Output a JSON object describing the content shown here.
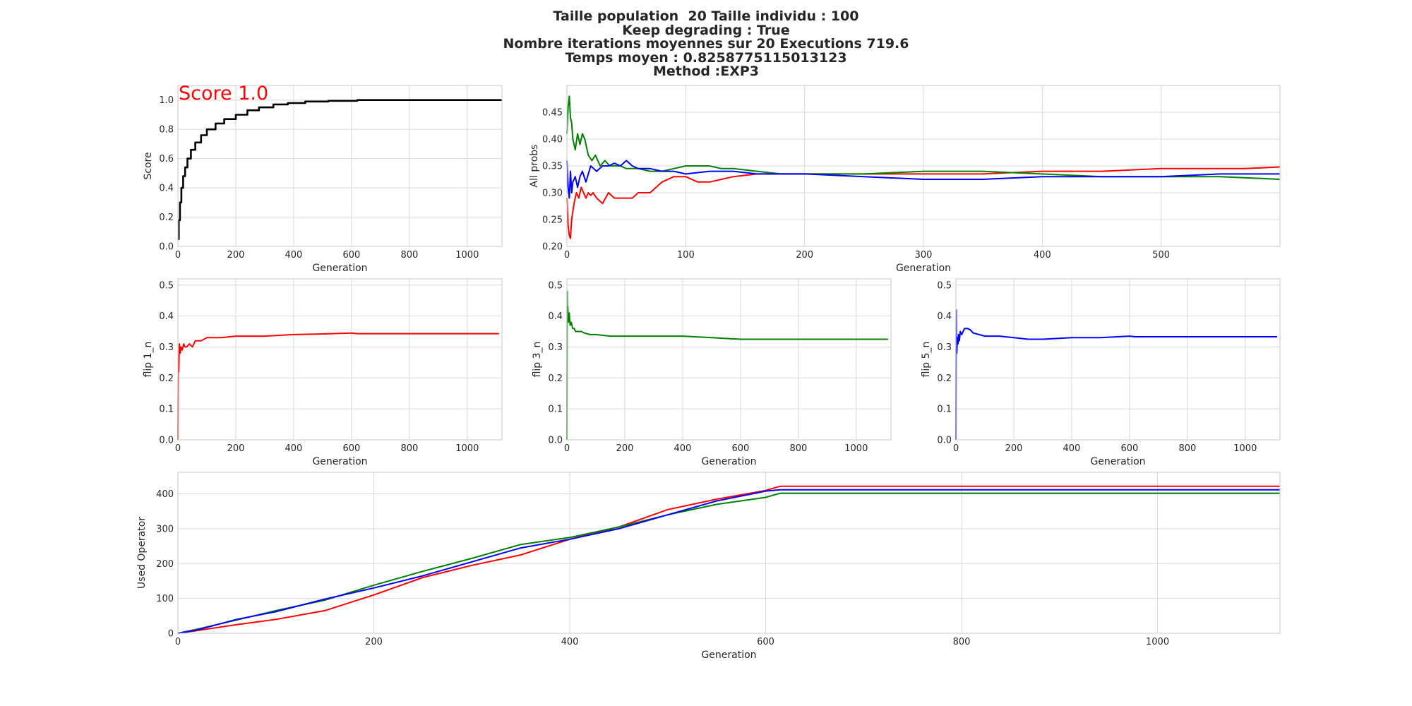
{
  "figure": {
    "title_lines": [
      "Taille population  20 Taille individu : 100",
      "Keep degrading : True",
      "Nombre iterations moyennes sur 20 Executions 719.6",
      "Temps moyen : 0.8258775115013123",
      "Method :EXP3"
    ]
  },
  "colors": {
    "flip1": "#ff0000",
    "flip3": "#008000",
    "flip5": "#0000ff",
    "score": "#000000"
  },
  "chart_data": [
    {
      "id": "score",
      "type": "line",
      "xlabel": "Generation",
      "ylabel": "Score",
      "xlim": [
        0,
        1120
      ],
      "ylim": [
        0,
        1.1
      ],
      "xticks": [
        0,
        200,
        400,
        600,
        800,
        1000
      ],
      "yticks": [
        0.0,
        0.2,
        0.4,
        0.6,
        0.8,
        1.0
      ],
      "annotation": "Score 1.0",
      "series": [
        {
          "color": "#000000",
          "step": true,
          "x": [
            0,
            3,
            7,
            12,
            18,
            25,
            33,
            45,
            60,
            80,
            100,
            130,
            160,
            200,
            240,
            280,
            330,
            380,
            440,
            520,
            620,
            1120
          ],
          "y": [
            0.05,
            0.18,
            0.3,
            0.4,
            0.48,
            0.54,
            0.6,
            0.66,
            0.71,
            0.76,
            0.8,
            0.84,
            0.87,
            0.9,
            0.93,
            0.95,
            0.97,
            0.98,
            0.99,
            0.995,
            1.0,
            1.0
          ]
        }
      ]
    },
    {
      "id": "allprobs",
      "type": "line",
      "xlabel": "Generation",
      "ylabel": "All probs",
      "xlim": [
        0,
        600
      ],
      "ylim": [
        0.2,
        0.5
      ],
      "xticks": [
        0,
        100,
        200,
        300,
        400,
        500
      ],
      "yticks": [
        0.2,
        0.25,
        0.3,
        0.35,
        0.4,
        0.45
      ],
      "series": [
        {
          "color": "#ff0000",
          "x": [
            0,
            1,
            2,
            3,
            4,
            6,
            8,
            10,
            12,
            14,
            16,
            18,
            20,
            22,
            25,
            30,
            35,
            40,
            45,
            50,
            55,
            60,
            70,
            80,
            90,
            100,
            110,
            120,
            140,
            160,
            180,
            200,
            250,
            300,
            350,
            400,
            450,
            500,
            550,
            570,
            600
          ],
          "y": [
            0.29,
            0.24,
            0.22,
            0.215,
            0.25,
            0.28,
            0.3,
            0.29,
            0.31,
            0.3,
            0.29,
            0.3,
            0.295,
            0.3,
            0.29,
            0.28,
            0.3,
            0.29,
            0.29,
            0.29,
            0.29,
            0.3,
            0.3,
            0.32,
            0.33,
            0.33,
            0.32,
            0.32,
            0.33,
            0.335,
            0.335,
            0.335,
            0.335,
            0.335,
            0.335,
            0.34,
            0.34,
            0.345,
            0.345,
            0.345,
            0.348
          ]
        },
        {
          "color": "#008000",
          "x": [
            0,
            1,
            2,
            3,
            4,
            5,
            7,
            9,
            11,
            13,
            15,
            18,
            21,
            24,
            28,
            32,
            36,
            40,
            45,
            50,
            60,
            70,
            80,
            90,
            100,
            110,
            120,
            130,
            140,
            160,
            180,
            200,
            250,
            300,
            350,
            400,
            450,
            500,
            550,
            600
          ],
          "y": [
            0.41,
            0.46,
            0.48,
            0.44,
            0.43,
            0.4,
            0.38,
            0.41,
            0.39,
            0.41,
            0.4,
            0.37,
            0.36,
            0.37,
            0.35,
            0.36,
            0.35,
            0.35,
            0.35,
            0.345,
            0.345,
            0.34,
            0.34,
            0.345,
            0.35,
            0.35,
            0.35,
            0.345,
            0.345,
            0.34,
            0.335,
            0.335,
            0.335,
            0.34,
            0.34,
            0.335,
            0.33,
            0.33,
            0.33,
            0.325
          ]
        },
        {
          "color": "#0000ff",
          "x": [
            0,
            1,
            2,
            3,
            4,
            5,
            7,
            9,
            11,
            13,
            16,
            20,
            25,
            30,
            35,
            40,
            45,
            50,
            55,
            60,
            70,
            80,
            90,
            100,
            120,
            140,
            160,
            200,
            250,
            300,
            350,
            400,
            450,
            500,
            550,
            600
          ],
          "y": [
            0.36,
            0.31,
            0.29,
            0.34,
            0.3,
            0.32,
            0.33,
            0.31,
            0.33,
            0.34,
            0.32,
            0.35,
            0.34,
            0.35,
            0.35,
            0.355,
            0.35,
            0.36,
            0.35,
            0.345,
            0.345,
            0.34,
            0.34,
            0.335,
            0.34,
            0.34,
            0.335,
            0.335,
            0.33,
            0.325,
            0.325,
            0.33,
            0.33,
            0.33,
            0.335,
            0.335
          ]
        }
      ]
    },
    {
      "id": "flip1",
      "type": "line",
      "xlabel": "Generation",
      "ylabel": "flip 1_n",
      "xlim": [
        0,
        1120
      ],
      "ylim": [
        0,
        0.52
      ],
      "xticks": [
        0,
        200,
        400,
        600,
        800,
        1000
      ],
      "yticks": [
        0.0,
        0.1,
        0.2,
        0.3,
        0.4,
        0.5
      ],
      "series": [
        {
          "color": "#ff0000",
          "x": [
            0,
            1,
            2,
            3,
            5,
            8,
            11,
            15,
            20,
            25,
            30,
            40,
            50,
            60,
            80,
            100,
            150,
            200,
            300,
            400,
            500,
            600,
            620,
            1110
          ],
          "y": [
            0.0,
            0.2,
            0.25,
            0.22,
            0.31,
            0.28,
            0.3,
            0.29,
            0.31,
            0.3,
            0.3,
            0.31,
            0.3,
            0.32,
            0.32,
            0.33,
            0.33,
            0.335,
            0.335,
            0.34,
            0.342,
            0.345,
            0.343,
            0.343
          ]
        }
      ]
    },
    {
      "id": "flip3",
      "type": "line",
      "xlabel": "Generation",
      "ylabel": "flip 3_n",
      "xlim": [
        0,
        1120
      ],
      "ylim": [
        0,
        0.52
      ],
      "xticks": [
        0,
        200,
        400,
        600,
        800,
        1000
      ],
      "yticks": [
        0.0,
        0.1,
        0.2,
        0.3,
        0.4,
        0.5
      ],
      "series": [
        {
          "color": "#008000",
          "x": [
            0,
            1,
            2,
            3,
            5,
            8,
            11,
            15,
            20,
            25,
            30,
            40,
            50,
            60,
            80,
            100,
            150,
            200,
            300,
            400,
            500,
            600,
            620,
            1110
          ],
          "y": [
            0.0,
            0.48,
            0.4,
            0.43,
            0.38,
            0.41,
            0.37,
            0.38,
            0.36,
            0.36,
            0.35,
            0.35,
            0.35,
            0.345,
            0.34,
            0.34,
            0.335,
            0.335,
            0.335,
            0.335,
            0.33,
            0.325,
            0.325,
            0.325
          ]
        }
      ]
    },
    {
      "id": "flip5",
      "type": "line",
      "xlabel": "Generation",
      "ylabel": "flip 5_n",
      "xlim": [
        0,
        1120
      ],
      "ylim": [
        0,
        0.52
      ],
      "xticks": [
        0,
        200,
        400,
        600,
        800,
        1000
      ],
      "yticks": [
        0.0,
        0.1,
        0.2,
        0.3,
        0.4,
        0.5
      ],
      "series": [
        {
          "color": "#0000ff",
          "x": [
            0,
            1,
            2,
            3,
            5,
            7,
            9,
            12,
            15,
            20,
            25,
            30,
            40,
            50,
            60,
            80,
            100,
            150,
            200,
            250,
            300,
            400,
            500,
            600,
            620,
            1110
          ],
          "y": [
            0.0,
            0.42,
            0.3,
            0.28,
            0.33,
            0.31,
            0.34,
            0.32,
            0.35,
            0.34,
            0.35,
            0.36,
            0.36,
            0.355,
            0.345,
            0.34,
            0.335,
            0.335,
            0.33,
            0.325,
            0.325,
            0.33,
            0.33,
            0.335,
            0.333,
            0.333
          ]
        }
      ]
    },
    {
      "id": "used",
      "type": "line",
      "xlabel": "Generation",
      "ylabel": "Used Operator",
      "xlim": [
        0,
        1125
      ],
      "ylim": [
        0,
        462
      ],
      "xticks": [
        0,
        200,
        400,
        600,
        800,
        1000
      ],
      "yticks": [
        0,
        100,
        200,
        300,
        400
      ],
      "series": [
        {
          "color": "#ff0000",
          "x": [
            0,
            20,
            60,
            100,
            150,
            200,
            250,
            300,
            350,
            400,
            450,
            500,
            550,
            600,
            615,
            1125
          ],
          "y": [
            0,
            8,
            25,
            40,
            65,
            110,
            160,
            195,
            225,
            270,
            305,
            355,
            385,
            410,
            422,
            422
          ]
        },
        {
          "color": "#008000",
          "x": [
            0,
            20,
            60,
            100,
            150,
            200,
            250,
            300,
            350,
            400,
            450,
            500,
            550,
            600,
            615,
            1125
          ],
          "y": [
            0,
            12,
            38,
            65,
            95,
            138,
            178,
            215,
            255,
            275,
            305,
            340,
            370,
            390,
            402,
            402
          ]
        },
        {
          "color": "#0000ff",
          "x": [
            0,
            20,
            60,
            100,
            150,
            200,
            250,
            300,
            350,
            400,
            450,
            500,
            550,
            600,
            615,
            1125
          ],
          "y": [
            0,
            10,
            40,
            62,
            98,
            130,
            165,
            205,
            245,
            270,
            300,
            340,
            380,
            408,
            412,
            412
          ]
        }
      ]
    }
  ]
}
